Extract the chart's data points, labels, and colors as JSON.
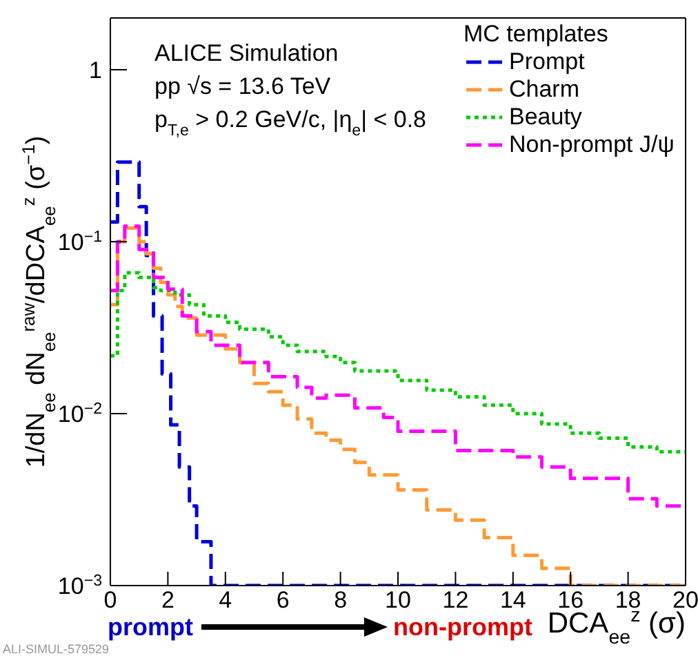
{
  "chart_data": {
    "type": "step",
    "xlabel": "DCA$_{ee}$$^{z}$ (σ)",
    "ylabel": "1/dN$_{ee}$ dN$_{ee}$$^{raw}$/dDCA$_{ee}$$^{z}$ (σ$^{−1}$)",
    "legend_title": "MC templates",
    "legend": "top right",
    "log": true,
    "xlim": [
      0,
      20
    ],
    "xticks": [
      0,
      2,
      4,
      6,
      8,
      10,
      12,
      14,
      16,
      18,
      20
    ],
    "ylim": [
      0.001,
      2
    ],
    "yticks": [
      {
        "value": 0.001,
        "label": "10$^{−3}$"
      },
      {
        "value": 0.01,
        "label": "10$^{−2}$"
      },
      {
        "value": 0.1,
        "label": "10$^{−1}$"
      },
      1
    ],
    "annotations": [
      "ALICE Simulation",
      "pp   √s = 13.6 TeV",
      "p$_{T,e}$ > 0.2 GeV/c, |η$_{e}$| < 0.8",
      "prompt",
      "non-prompt",
      "ALI-SIMUL-579529"
    ],
    "series": [
      {
        "name": "Prompt",
        "color": "#0000dd",
        "line_style": "dashed",
        "x": [
          0,
          0.25,
          1.0,
          1.25,
          1.5,
          1.8,
          2.1,
          2.4,
          2.75,
          3.0,
          3.5,
          20
        ],
        "values": [
          0.13,
          0.29,
          0.16,
          0.083,
          0.037,
          0.017,
          0.0086,
          0.0049,
          0.0029,
          0.0018,
          0.001,
          0.001
        ]
      },
      {
        "name": "Charm",
        "color": "#ff9933",
        "line_style": "dashed",
        "x": [
          0,
          0.25,
          0.5,
          1.0,
          1.25,
          1.5,
          1.75,
          2.0,
          2.25,
          2.5,
          3.0,
          4.0,
          4.5,
          5.0,
          5.5,
          6.0,
          6.5,
          7.0,
          7.5,
          8.0,
          8.5,
          9,
          10,
          11,
          12,
          13,
          14,
          15,
          16,
          20
        ],
        "values": [
          0.043,
          0.1,
          0.12,
          0.1,
          0.085,
          0.07,
          0.058,
          0.049,
          0.042,
          0.036,
          0.0286,
          0.0238,
          0.0198,
          0.015,
          0.0134,
          0.0112,
          0.0093,
          0.0077,
          0.007,
          0.0062,
          0.0052,
          0.0044,
          0.0036,
          0.00275,
          0.0024,
          0.0019,
          0.0015,
          0.00126,
          0.001,
          0.001
        ]
      },
      {
        "name": "Beauty",
        "color": "#00cc00",
        "line_style": "dotted",
        "x": [
          0,
          0.25,
          0.5,
          1.0,
          1.5,
          1.75,
          2.25,
          2.75,
          3.25,
          4,
          4.5,
          5.5,
          6,
          6.5,
          7.5,
          8,
          8.5,
          10,
          11,
          12,
          13,
          14,
          15,
          16,
          17,
          18,
          19,
          20
        ],
        "values": [
          0.0217,
          0.052,
          0.066,
          0.062,
          0.054,
          0.052,
          0.049,
          0.043,
          0.037,
          0.034,
          0.031,
          0.028,
          0.025,
          0.023,
          0.0215,
          0.0198,
          0.0177,
          0.0156,
          0.0137,
          0.0125,
          0.0112,
          0.01,
          0.0087,
          0.0077,
          0.0072,
          0.0064,
          0.006,
          0.006
        ]
      },
      {
        "name": "Non-prompt J/ψ",
        "color": "#ff00ff",
        "line_style": "dashed",
        "x": [
          0,
          0.25,
          0.5,
          1.0,
          1.5,
          2.0,
          2.5,
          3.0,
          3.5,
          4.5,
          5.5,
          6.5,
          7.0,
          7.5,
          8.5,
          9.5,
          10,
          12,
          14,
          15,
          16,
          18,
          19,
          20
        ],
        "values": [
          0.052,
          0.1,
          0.123,
          0.09,
          0.062,
          0.053,
          0.037,
          0.03,
          0.025,
          0.0198,
          0.0164,
          0.0142,
          0.0123,
          0.0128,
          0.0108,
          0.0095,
          0.0079,
          0.0061,
          0.0056,
          0.0049,
          0.0042,
          0.0032,
          0.0029,
          0.0029
        ]
      }
    ]
  }
}
